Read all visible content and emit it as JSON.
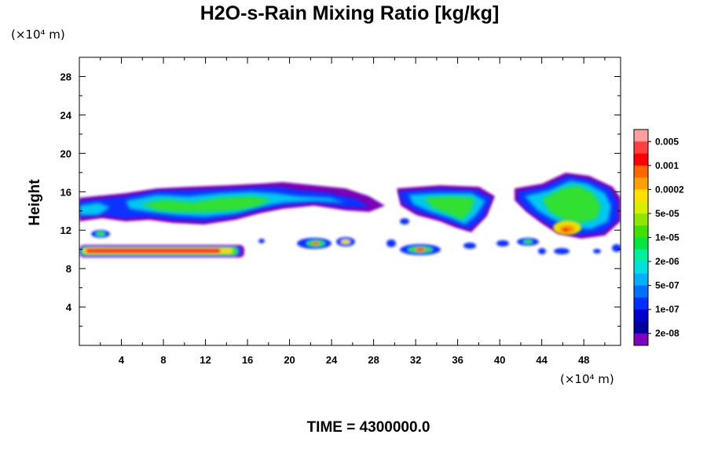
{
  "chart_data": {
    "type": "heatmap",
    "title": "H2O-s-Rain Mixing Ratio [kg/kg]",
    "ylabel": "Height",
    "y_units": "(×10⁴ m)",
    "x_units": "(×10⁴ m)",
    "xlim": [
      0,
      51.5
    ],
    "ylim": [
      0,
      30
    ],
    "x_ticks": [
      4,
      8,
      12,
      16,
      20,
      24,
      28,
      32,
      36,
      40,
      44,
      48
    ],
    "y_ticks": [
      4,
      8,
      12,
      16,
      20,
      24,
      28
    ],
    "footer": "TIME = 4300000.0",
    "colorbar": {
      "labels": [
        "0.005",
        "0.001",
        "0.0002",
        "5e-05",
        "1e-05",
        "2e-06",
        "5e-07",
        "1e-07",
        "2e-08"
      ],
      "colors_top_to_bottom": [
        "#ff9e9e",
        "#ff4040",
        "#ff0000",
        "#ff6600",
        "#ffa000",
        "#ffe000",
        "#d8f000",
        "#90e800",
        "#40e000",
        "#00e840",
        "#00f0a0",
        "#00e0e0",
        "#00b0ff",
        "#0070ff",
        "#0030ff",
        "#0000d0",
        "#0000a0",
        "#8000c0"
      ]
    },
    "cloud_regions": [
      {
        "x": [
          0,
          51.5
        ],
        "y": [
          12.5,
          17
        ],
        "description_level": "1e-07 to 5e-05"
      },
      {
        "x": [
          0,
          15.5
        ],
        "y": [
          9.3,
          10.5
        ],
        "description_level": "1e-06 to 0.005"
      },
      {
        "x": [
          44,
          50
        ],
        "y": [
          11,
          18
        ],
        "description_level": "1e-07 to 0.0002"
      }
    ]
  }
}
